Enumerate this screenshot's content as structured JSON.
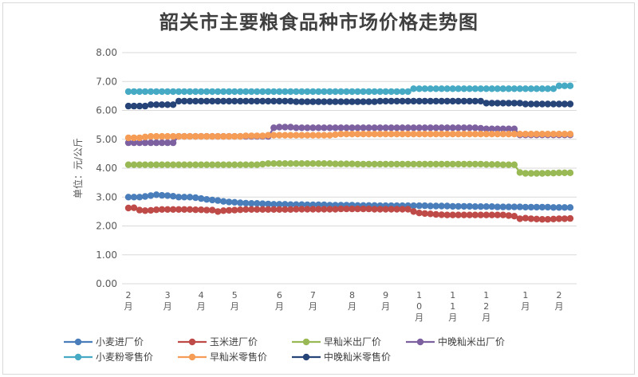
{
  "chart_data": {
    "type": "line",
    "title": "韶关市主要粮食品种市场价格走势图",
    "ylabel": "单位：元/公斤",
    "xlabel": "",
    "ylim": [
      0,
      8
    ],
    "yticks": [
      "0.00",
      "1.00",
      "2.00",
      "3.00",
      "4.00",
      "5.00",
      "6.00",
      "7.00",
      "8.00"
    ],
    "x_count": 80,
    "x_tick_labels": [
      {
        "index": 0,
        "label": "2\n月"
      },
      {
        "index": 7,
        "label": "3\n月"
      },
      {
        "index": 13,
        "label": "4\n月"
      },
      {
        "index": 19,
        "label": "5\n月"
      },
      {
        "index": 27,
        "label": "6\n月"
      },
      {
        "index": 33,
        "label": "7\n月"
      },
      {
        "index": 40,
        "label": "8\n月"
      },
      {
        "index": 46,
        "label": "9\n月"
      },
      {
        "index": 52,
        "label": "1\n0\n月"
      },
      {
        "index": 58,
        "label": "1\n1\n月"
      },
      {
        "index": 64,
        "label": "1\n2\n月"
      },
      {
        "index": 71,
        "label": "1\n月"
      },
      {
        "index": 77,
        "label": "2\n月"
      }
    ],
    "grid": true,
    "legend_position": "bottom",
    "series": [
      {
        "name": "小麦进厂价",
        "color": "#4a7ebb",
        "values": [
          3.0,
          3.0,
          3.0,
          3.02,
          3.05,
          3.08,
          3.06,
          3.05,
          3.03,
          3.0,
          3.0,
          3.0,
          2.98,
          2.95,
          2.92,
          2.9,
          2.88,
          2.85,
          2.83,
          2.82,
          2.8,
          2.79,
          2.78,
          2.78,
          2.77,
          2.76,
          2.75,
          2.75,
          2.75,
          2.74,
          2.74,
          2.74,
          2.73,
          2.73,
          2.73,
          2.73,
          2.72,
          2.72,
          2.72,
          2.72,
          2.72,
          2.71,
          2.71,
          2.71,
          2.71,
          2.7,
          2.7,
          2.7,
          2.7,
          2.7,
          2.7,
          2.7,
          2.7,
          2.7,
          2.69,
          2.69,
          2.69,
          2.69,
          2.68,
          2.68,
          2.68,
          2.68,
          2.67,
          2.67,
          2.67,
          2.67,
          2.66,
          2.66,
          2.66,
          2.66,
          2.66,
          2.65,
          2.65,
          2.65,
          2.65,
          2.65,
          2.64,
          2.64,
          2.64,
          2.64
        ]
      },
      {
        "name": "玉米进厂价",
        "color": "#be4b48",
        "values": [
          2.62,
          2.63,
          2.55,
          2.53,
          2.54,
          2.56,
          2.57,
          2.57,
          2.57,
          2.57,
          2.57,
          2.57,
          2.56,
          2.56,
          2.55,
          2.55,
          2.5,
          2.53,
          2.54,
          2.55,
          2.56,
          2.57,
          2.57,
          2.57,
          2.57,
          2.57,
          2.57,
          2.57,
          2.57,
          2.57,
          2.58,
          2.58,
          2.58,
          2.58,
          2.58,
          2.58,
          2.58,
          2.58,
          2.59,
          2.59,
          2.59,
          2.59,
          2.59,
          2.59,
          2.58,
          2.58,
          2.58,
          2.58,
          2.58,
          2.58,
          2.58,
          2.5,
          2.45,
          2.43,
          2.42,
          2.4,
          2.39,
          2.38,
          2.38,
          2.38,
          2.38,
          2.38,
          2.38,
          2.38,
          2.38,
          2.38,
          2.38,
          2.38,
          2.36,
          2.34,
          2.25,
          2.27,
          2.25,
          2.24,
          2.23,
          2.23,
          2.24,
          2.25,
          2.25,
          2.26
        ]
      },
      {
        "name": "早籼米出厂价",
        "color": "#98b954",
        "values": [
          4.12,
          4.12,
          4.12,
          4.12,
          4.12,
          4.12,
          4.12,
          4.12,
          4.12,
          4.12,
          4.12,
          4.12,
          4.12,
          4.12,
          4.12,
          4.12,
          4.12,
          4.12,
          4.12,
          4.12,
          4.12,
          4.12,
          4.12,
          4.12,
          4.14,
          4.16,
          4.16,
          4.16,
          4.16,
          4.16,
          4.16,
          4.16,
          4.16,
          4.16,
          4.16,
          4.16,
          4.16,
          4.15,
          4.15,
          4.15,
          4.15,
          4.14,
          4.14,
          4.14,
          4.14,
          4.14,
          4.14,
          4.14,
          4.14,
          4.14,
          4.14,
          4.14,
          4.14,
          4.14,
          4.14,
          4.14,
          4.14,
          4.14,
          4.14,
          4.14,
          4.14,
          4.14,
          4.14,
          4.14,
          4.13,
          4.13,
          4.13,
          4.12,
          4.12,
          4.12,
          3.85,
          3.82,
          3.82,
          3.82,
          3.82,
          3.83,
          3.83,
          3.84,
          3.84,
          3.84
        ]
      },
      {
        "name": "中晚籼米出厂价",
        "color": "#7d60a0",
        "values": [
          4.88,
          4.88,
          4.88,
          4.88,
          4.88,
          4.88,
          4.88,
          4.88,
          4.88,
          5.1,
          5.1,
          5.1,
          5.1,
          5.1,
          5.1,
          5.1,
          5.1,
          5.1,
          5.1,
          5.1,
          5.1,
          5.1,
          5.1,
          5.1,
          5.1,
          5.1,
          5.4,
          5.42,
          5.42,
          5.42,
          5.4,
          5.4,
          5.4,
          5.4,
          5.4,
          5.4,
          5.4,
          5.4,
          5.4,
          5.4,
          5.4,
          5.4,
          5.4,
          5.4,
          5.4,
          5.4,
          5.4,
          5.4,
          5.4,
          5.4,
          5.4,
          5.4,
          5.4,
          5.4,
          5.4,
          5.4,
          5.4,
          5.4,
          5.4,
          5.4,
          5.4,
          5.4,
          5.4,
          5.38,
          5.36,
          5.36,
          5.36,
          5.36,
          5.36,
          5.36,
          5.15,
          5.15,
          5.15,
          5.15,
          5.15,
          5.15,
          5.15,
          5.15,
          5.15,
          5.15
        ]
      },
      {
        "name": "小麦粉零售价",
        "color": "#46aac5",
        "values": [
          6.65,
          6.65,
          6.65,
          6.65,
          6.65,
          6.65,
          6.65,
          6.65,
          6.65,
          6.65,
          6.65,
          6.65,
          6.65,
          6.65,
          6.65,
          6.65,
          6.65,
          6.65,
          6.65,
          6.65,
          6.65,
          6.65,
          6.65,
          6.65,
          6.65,
          6.65,
          6.65,
          6.65,
          6.65,
          6.65,
          6.65,
          6.65,
          6.65,
          6.65,
          6.65,
          6.65,
          6.65,
          6.65,
          6.65,
          6.65,
          6.65,
          6.65,
          6.65,
          6.65,
          6.65,
          6.65,
          6.65,
          6.65,
          6.65,
          6.65,
          6.65,
          6.75,
          6.75,
          6.75,
          6.75,
          6.75,
          6.75,
          6.75,
          6.75,
          6.75,
          6.75,
          6.75,
          6.75,
          6.75,
          6.75,
          6.75,
          6.75,
          6.75,
          6.75,
          6.75,
          6.75,
          6.75,
          6.75,
          6.75,
          6.75,
          6.75,
          6.75,
          6.85,
          6.85,
          6.85
        ]
      },
      {
        "name": "早籼米零售价",
        "color": "#f59d56",
        "values": [
          5.05,
          5.05,
          5.05,
          5.08,
          5.1,
          5.1,
          5.1,
          5.1,
          5.1,
          5.1,
          5.1,
          5.1,
          5.1,
          5.1,
          5.1,
          5.1,
          5.1,
          5.1,
          5.1,
          5.1,
          5.1,
          5.12,
          5.12,
          5.12,
          5.12,
          5.14,
          5.14,
          5.14,
          5.14,
          5.14,
          5.14,
          5.14,
          5.14,
          5.14,
          5.14,
          5.14,
          5.14,
          5.16,
          5.18,
          5.18,
          5.18,
          5.18,
          5.18,
          5.18,
          5.18,
          5.18,
          5.18,
          5.18,
          5.18,
          5.18,
          5.18,
          5.18,
          5.18,
          5.18,
          5.18,
          5.18,
          5.18,
          5.18,
          5.18,
          5.18,
          5.18,
          5.18,
          5.18,
          5.18,
          5.18,
          5.18,
          5.18,
          5.18,
          5.18,
          5.18,
          5.18,
          5.18,
          5.18,
          5.18,
          5.18,
          5.18,
          5.18,
          5.18,
          5.18,
          5.18
        ]
      },
      {
        "name": "中晚籼米零售价",
        "color": "#264478",
        "values": [
          6.15,
          6.15,
          6.15,
          6.15,
          6.2,
          6.2,
          6.2,
          6.2,
          6.2,
          6.32,
          6.32,
          6.32,
          6.32,
          6.32,
          6.32,
          6.32,
          6.32,
          6.32,
          6.32,
          6.32,
          6.32,
          6.32,
          6.32,
          6.32,
          6.32,
          6.32,
          6.32,
          6.32,
          6.32,
          6.32,
          6.3,
          6.3,
          6.3,
          6.3,
          6.3,
          6.3,
          6.3,
          6.3,
          6.3,
          6.3,
          6.3,
          6.3,
          6.3,
          6.3,
          6.3,
          6.32,
          6.32,
          6.32,
          6.32,
          6.32,
          6.32,
          6.32,
          6.32,
          6.32,
          6.32,
          6.32,
          6.32,
          6.32,
          6.32,
          6.32,
          6.32,
          6.32,
          6.32,
          6.32,
          6.25,
          6.25,
          6.25,
          6.25,
          6.25,
          6.25,
          6.25,
          6.22,
          6.22,
          6.22,
          6.22,
          6.22,
          6.22,
          6.22,
          6.22,
          6.22
        ]
      }
    ]
  }
}
